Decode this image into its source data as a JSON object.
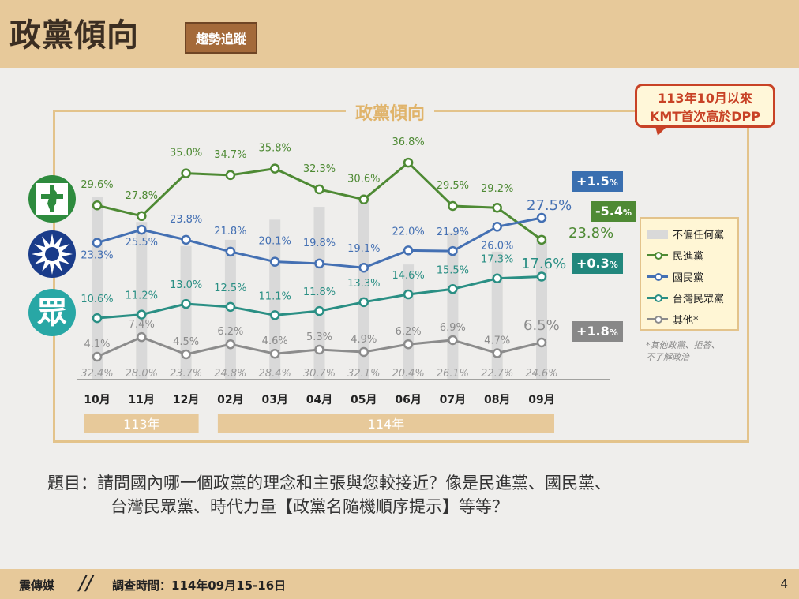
{
  "header": {
    "title": "政黨傾向",
    "tag": "趨勢追蹤"
  },
  "frame_title": "政黨傾向",
  "callout": {
    "line1": "113年10月以來",
    "line2": "KMT首次高於DPP"
  },
  "logos": {
    "tpp_char": "眾"
  },
  "legend": {
    "items": [
      {
        "label": "不偏任何黨",
        "color": "#d9d9d9"
      },
      {
        "label": "民進黨",
        "color": "#4e8a34"
      },
      {
        "label": "國民黨",
        "color": "#4470b3"
      },
      {
        "label": "台灣民眾黨",
        "color": "#2a8f84"
      },
      {
        "label": "其他*",
        "color": "#8c8c8c"
      }
    ],
    "note_line1": "*其他政黨、拒答、",
    "note_line2": "不了解政治"
  },
  "changes": {
    "kmt": {
      "label": "+1.5",
      "unit": "%",
      "color": "#3a6fb0"
    },
    "dpp": {
      "label": "-5.4",
      "unit": "%",
      "color": "#4e8a34"
    },
    "tpp": {
      "label": "+0.3",
      "unit": "%",
      "color": "#22877d"
    },
    "other": {
      "label": "+1.8",
      "unit": "%",
      "color": "#888888"
    }
  },
  "chart_data": {
    "type": "line",
    "categories": [
      "10月",
      "11月",
      "12月",
      "02月",
      "03月",
      "04月",
      "05月",
      "06月",
      "07月",
      "08月",
      "09月"
    ],
    "year_groups": [
      {
        "label": "113年",
        "span": [
          0,
          2
        ]
      },
      {
        "label": "114年",
        "span": [
          3,
          10
        ]
      }
    ],
    "series": [
      {
        "name": "不偏任何黨",
        "kind": "bar",
        "color": "#d9d9d9",
        "values": [
          32.4,
          28.0,
          23.7,
          24.8,
          28.4,
          30.7,
          32.1,
          20.4,
          26.1,
          22.7,
          24.6
        ],
        "labels": [
          "32.4%",
          "28.0%",
          "23.7%",
          "24.8%",
          "28.4%",
          "30.7%",
          "32.1%",
          "20.4%",
          "26.1%",
          "22.7%",
          "24.6%"
        ]
      },
      {
        "name": "民進黨",
        "kind": "line",
        "color": "#4e8a34",
        "values": [
          29.6,
          27.8,
          35.0,
          34.7,
          35.8,
          32.3,
          30.6,
          36.8,
          29.5,
          29.2,
          23.8
        ],
        "labels": [
          "29.6%",
          "27.8%",
          "35.0%",
          "34.7%",
          "35.8%",
          "32.3%",
          "30.6%",
          "36.8%",
          "29.5%",
          "29.2%",
          "23.8%"
        ]
      },
      {
        "name": "國民黨",
        "kind": "line",
        "color": "#4470b3",
        "values": [
          23.3,
          25.5,
          23.8,
          21.8,
          20.1,
          19.8,
          19.1,
          22.0,
          21.9,
          26.0,
          27.5
        ],
        "labels": [
          "23.3%",
          "25.5%",
          "23.8%",
          "21.8%",
          "20.1%",
          "19.8%",
          "19.1%",
          "22.0%",
          "21.9%",
          "26.0%",
          "27.5%"
        ]
      },
      {
        "name": "台灣民眾黨",
        "kind": "line",
        "color": "#2a8f84",
        "values": [
          10.6,
          11.2,
          13.0,
          12.5,
          11.1,
          11.8,
          13.3,
          14.6,
          15.5,
          17.3,
          17.6
        ],
        "labels": [
          "10.6%",
          "11.2%",
          "13.0%",
          "12.5%",
          "11.1%",
          "11.8%",
          "13.3%",
          "14.6%",
          "15.5%",
          "17.3%",
          "17.6%"
        ]
      },
      {
        "name": "其他*",
        "kind": "line",
        "color": "#8c8c8c",
        "values": [
          4.1,
          7.4,
          4.5,
          6.2,
          4.6,
          5.3,
          4.9,
          6.2,
          6.9,
          4.7,
          6.5
        ],
        "labels": [
          "4.1%",
          "7.4%",
          "4.5%",
          "6.2%",
          "4.6%",
          "5.3%",
          "4.9%",
          "6.2%",
          "6.9%",
          "4.7%",
          "6.5%"
        ]
      }
    ]
  },
  "question": {
    "line1": "題目：請問國內哪一個政黨的理念和主張與您較接近？像是民進黨、國民黨、",
    "line2": "台灣民眾黨、時代力量【政黨名隨機順序提示】等等？"
  },
  "footer": {
    "brand": "震傳媒",
    "slash": "//",
    "date": "調查時間：114年09月15-16日",
    "page": "4"
  }
}
